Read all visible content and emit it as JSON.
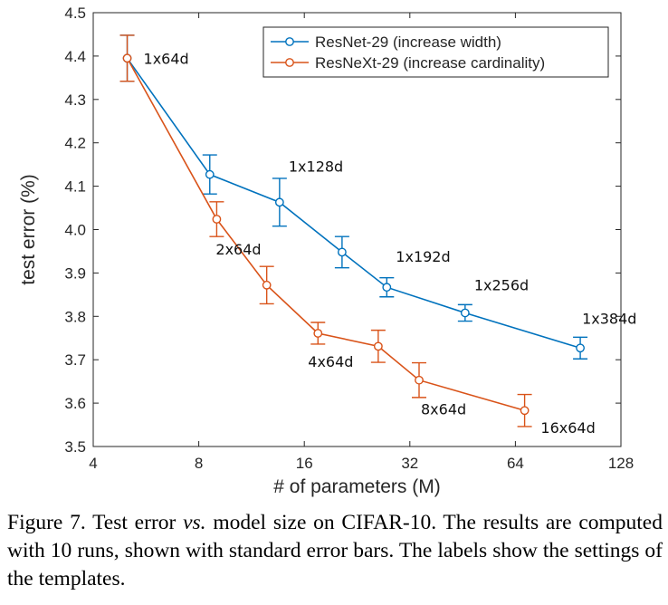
{
  "chart_data": {
    "type": "line",
    "xlabel": "# of parameters (M)",
    "ylabel": "test error (%)",
    "x_scale": "log2",
    "xlim": [
      4,
      128
    ],
    "ylim": [
      3.5,
      4.5
    ],
    "x_ticks": [
      4,
      8,
      16,
      32,
      64,
      128
    ],
    "x_tick_labels": [
      "4",
      "8",
      "16",
      "32",
      "64",
      "128"
    ],
    "y_ticks": [
      3.5,
      3.6,
      3.7,
      3.8,
      3.9,
      4.0,
      4.1,
      4.2,
      4.3,
      4.4,
      4.5
    ],
    "y_tick_labels": [
      "3.5",
      "3.6",
      "3.7",
      "3.8",
      "3.9",
      "4.0",
      "4.1",
      "4.2",
      "4.3",
      "4.4",
      "4.5"
    ],
    "grid": false,
    "legend_position": "top-right",
    "series": [
      {
        "name": "ResNet-29 (increase width)",
        "color": "#0072BD",
        "x": [
          5.0,
          8.6,
          13.6,
          20.5,
          27.5,
          46.0,
          98.0
        ],
        "y": [
          4.395,
          4.127,
          4.063,
          3.948,
          3.867,
          3.808,
          3.727
        ],
        "err": [
          0.053,
          0.045,
          0.055,
          0.036,
          0.022,
          0.019,
          0.025
        ]
      },
      {
        "name": "ResNeXt-29 (increase cardinality)",
        "color": "#D95319",
        "x": [
          5.0,
          9.0,
          12.5,
          17.5,
          26.0,
          34.0,
          68.0
        ],
        "y": [
          4.395,
          4.024,
          3.872,
          3.761,
          3.731,
          3.653,
          3.583
        ],
        "err": [
          0.053,
          0.04,
          0.043,
          0.025,
          0.037,
          0.04,
          0.037
        ]
      }
    ],
    "annotations": [
      {
        "text": "1x64d",
        "x": 5.0,
        "y": 4.395,
        "dx": 18,
        "dy": 6
      },
      {
        "text": "1x128d",
        "x": 13.6,
        "y": 4.063,
        "dx": 10,
        "dy": -34
      },
      {
        "text": "1x192d",
        "x": 27.5,
        "y": 3.867,
        "dx": 10,
        "dy": -28
      },
      {
        "text": "1x256d",
        "x": 46.0,
        "y": 3.808,
        "dx": 10,
        "dy": -25
      },
      {
        "text": "1x384d",
        "x": 98.0,
        "y": 3.727,
        "dx": 2,
        "dy": -27
      },
      {
        "text": "2x64d",
        "x": 9.0,
        "y": 4.024,
        "dx": -1,
        "dy": 39
      },
      {
        "text": "4x64d",
        "x": 17.5,
        "y": 3.761,
        "dx": -11,
        "dy": 37
      },
      {
        "text": "8x64d",
        "x": 34.0,
        "y": 3.653,
        "dx": 2,
        "dy": 38
      },
      {
        "text": "16x64d",
        "x": 68.0,
        "y": 3.583,
        "dx": 48,
        "dy": 25
      }
    ]
  },
  "caption": {
    "prefix": "Figure 7. Test error ",
    "emph": "vs.",
    "suffix": " model size on CIFAR-10. The results are computed with 10 runs, shown with standard error bars. The labels show the settings of the templates."
  }
}
